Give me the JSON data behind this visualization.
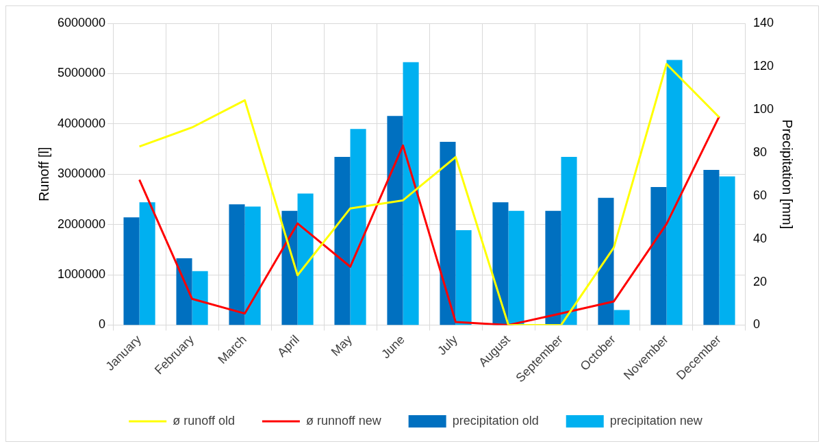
{
  "chart_data": {
    "type": "bar",
    "ylabel": "Runoff [l]",
    "y2label": "Precipitation [mm]",
    "categories": [
      "January",
      "February",
      "March",
      "April",
      "May",
      "June",
      "July",
      "August",
      "September",
      "October",
      "November",
      "December"
    ],
    "series": [
      {
        "name": "precipitation old",
        "color": "#0070c0",
        "axis": "y2",
        "values": [
          50,
          31,
          56,
          53,
          78,
          97,
          85,
          57,
          53,
          59,
          64,
          72
        ]
      },
      {
        "name": "precipitation new",
        "color": "#00b0f0",
        "axis": "y2",
        "values": [
          57,
          25,
          55,
          61,
          91,
          122,
          44,
          53,
          78,
          7,
          123,
          69
        ]
      },
      {
        "name": "ø runoff old",
        "type": "line",
        "color": "#ffff00",
        "values": [
          3550000,
          3930000,
          4470000,
          990000,
          2320000,
          2480000,
          3340000,
          0,
          0,
          1540000,
          5190000,
          4130000
        ]
      },
      {
        "name": "ø runnoff new",
        "type": "line",
        "color": "#ff0000",
        "values": [
          2890000,
          520000,
          230000,
          2020000,
          1160000,
          3570000,
          60000,
          0,
          230000,
          470000,
          2010000,
          4150000
        ]
      }
    ],
    "ylim": [
      0,
      6000000
    ],
    "yticks": [
      0,
      1000000,
      2000000,
      3000000,
      4000000,
      5000000,
      6000000
    ],
    "y2lim": [
      0,
      140
    ],
    "y2ticks": [
      0,
      20,
      40,
      60,
      80,
      100,
      120,
      140
    ],
    "grid": true,
    "legend": "bottom",
    "marker": "none"
  }
}
